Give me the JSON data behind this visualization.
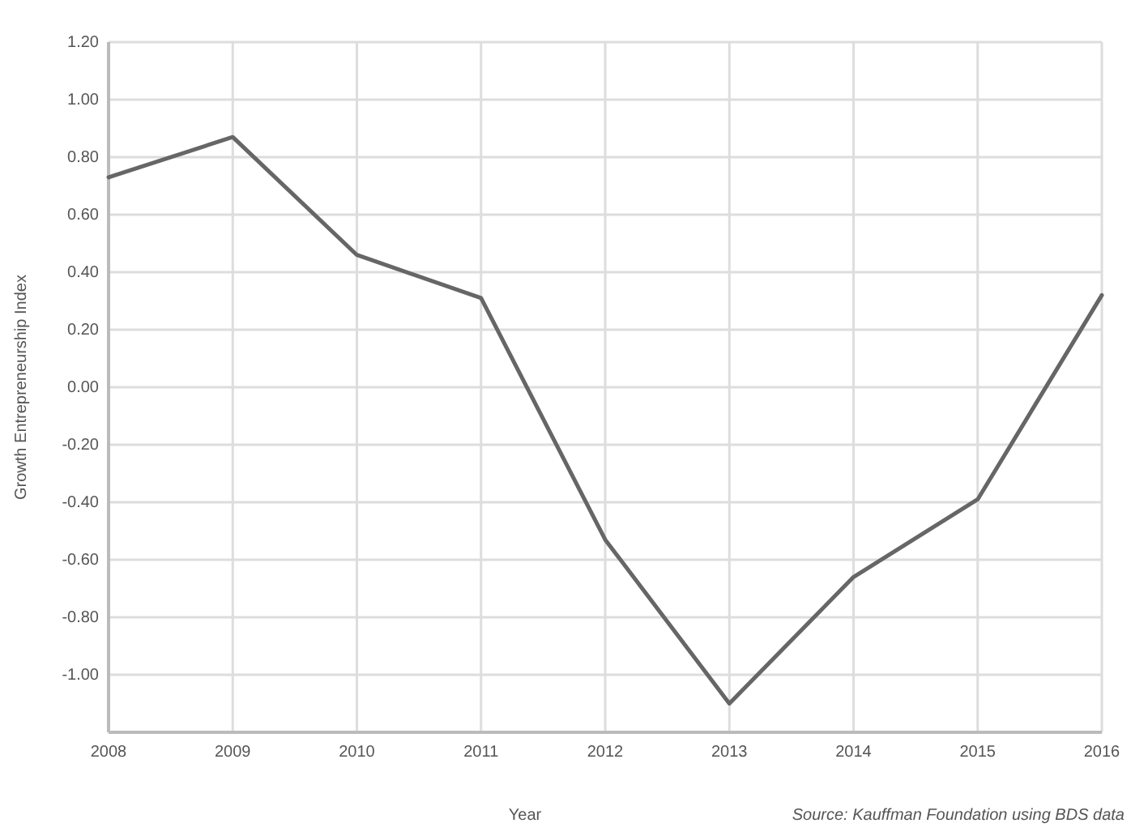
{
  "chart_data": {
    "type": "line",
    "xlabel": "Year",
    "ylabel": "Growth Entrepreneurship Index",
    "x": [
      2008,
      2009,
      2010,
      2011,
      2012,
      2013,
      2014,
      2015,
      2016
    ],
    "series": [
      {
        "color": "#666666",
        "values": [
          0.73,
          0.87,
          0.46,
          0.31,
          -0.53,
          -1.1,
          -0.66,
          -0.39,
          0.32
        ]
      }
    ],
    "xlim": [
      2008,
      2016
    ],
    "xticks": [
      2008,
      2009,
      2010,
      2011,
      2012,
      2013,
      2014,
      2015,
      2016
    ],
    "ylim": [
      -1.2,
      1.2
    ],
    "yticks": [
      {
        "value": -1.2,
        "label": null
      },
      {
        "value": -1,
        "label": "-1.00"
      },
      {
        "value": -0.8,
        "label": "-0.80"
      },
      {
        "value": -0.6,
        "label": "-0.60"
      },
      {
        "value": -0.4,
        "label": "-0.40"
      },
      {
        "value": -0.2,
        "label": "-0.20"
      },
      {
        "value": 0,
        "label": "0.00"
      },
      {
        "value": 0.2,
        "label": "0.20"
      },
      {
        "value": 0.4,
        "label": "0.40"
      },
      {
        "value": 0.6,
        "label": "0.60"
      },
      {
        "value": 0.8,
        "label": "0.80"
      },
      {
        "value": 1,
        "label": "1.00"
      },
      {
        "value": 1.2,
        "label": "1.20"
      }
    ],
    "grid": true,
    "marker": "none",
    "line_style": "solid",
    "annotations": [
      "Source: Kauffman Foundation using BDS data"
    ]
  }
}
